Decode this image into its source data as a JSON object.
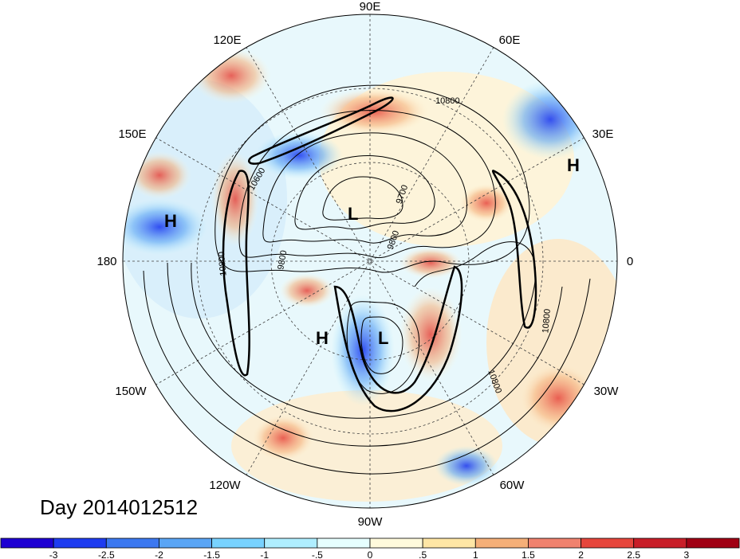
{
  "title": "Day 2014012512",
  "longitude_labels": {
    "lon_90e": "90E",
    "lon_60e": "60E",
    "lon_30e": "30E",
    "lon_0": "0",
    "lon_30w": "30W",
    "lon_60w": "60W",
    "lon_90w": "90W",
    "lon_120w": "120W",
    "lon_150w": "150W",
    "lon_180": "180",
    "lon_150e": "150E",
    "lon_120e": "120E"
  },
  "pressure_centers": {
    "high_pacific": "H",
    "high_europe": "H",
    "high_west_north_america": "H",
    "low_siberia": "L",
    "low_canada": "L"
  },
  "contour_labels": {
    "c1": "10800",
    "c2": "10600",
    "c3": "9700",
    "c4": "9800",
    "c5": "9800",
    "c6": "10800",
    "c7": "10800",
    "c8": "10800"
  },
  "colorbar": {
    "colors": [
      "#1e00d2",
      "#1e3cf0",
      "#3c78f0",
      "#5aa5f5",
      "#78d2ff",
      "#afeeff",
      "#e6ffff",
      "#fffadc",
      "#ffe6a5",
      "#f5af78",
      "#f0826e",
      "#e6463c",
      "#c81e28",
      "#a00014"
    ],
    "labels": [
      "-3",
      "-2.5",
      "-2",
      "-1.5",
      "-1",
      "-.5",
      "0",
      ".5",
      "1",
      "1.5",
      "2",
      "2.5",
      "3"
    ]
  },
  "colors": {
    "ocean_neutral": "#e8f8fc",
    "contour": "#000000",
    "graticule": "#404040"
  }
}
